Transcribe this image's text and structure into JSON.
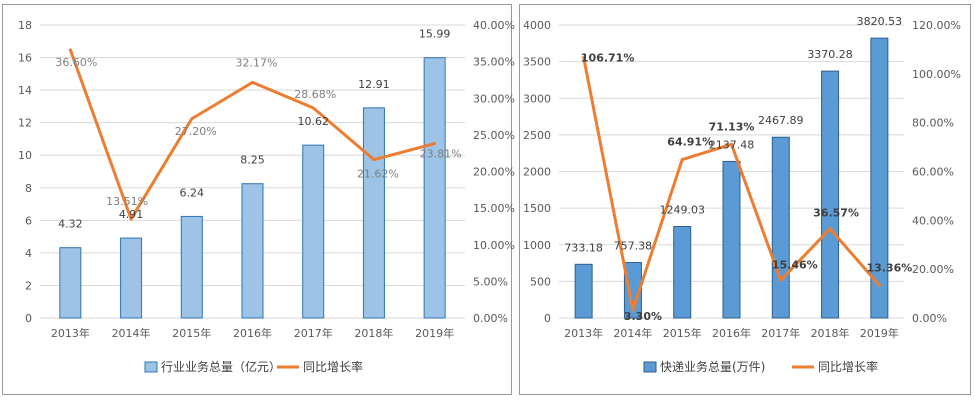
{
  "chart_data": [
    {
      "type": "bar",
      "categories": [
        "2013年",
        "2014年",
        "2015年",
        "2016年",
        "2017年",
        "2018年",
        "2019年"
      ],
      "series": [
        {
          "name": "行业业务总量（亿元）",
          "type": "bar",
          "axis": "left",
          "values": [
            4.32,
            4.91,
            6.24,
            8.25,
            10.62,
            12.91,
            15.99
          ],
          "labels": [
            "4.32",
            "4.91",
            "6.24",
            "8.25",
            "10.62",
            "12.91",
            "15.99"
          ]
        },
        {
          "name": "同比增长率",
          "type": "line",
          "axis": "right",
          "values": [
            36.6,
            13.51,
            27.2,
            32.17,
            28.68,
            21.62,
            23.81
          ],
          "labels": [
            "36.60%",
            "13.51%",
            "27.20%",
            "32.17%",
            "28.68%",
            "21.62%",
            "23.81%"
          ]
        }
      ],
      "ylim": [
        0,
        18
      ],
      "y_ticks": [
        "0",
        "2",
        "4",
        "6",
        "8",
        "10",
        "12",
        "14",
        "16",
        "18"
      ],
      "y2lim": [
        0,
        40
      ],
      "y2_ticks": [
        "0.00%",
        "5.00%",
        "10.00%",
        "15.00%",
        "20.00%",
        "25.00%",
        "30.00%",
        "35.00%",
        "40.00%"
      ],
      "grid": true,
      "legend": "bottom",
      "colors": {
        "bar": "#9dc3e6",
        "bar_border": "#2e75b6",
        "line": "#ed7d31"
      }
    },
    {
      "type": "bar",
      "categories": [
        "2013年",
        "2014年",
        "2015年",
        "2016年",
        "2017年",
        "2018年",
        "2019年"
      ],
      "series": [
        {
          "name": "快递业务总量(万件)",
          "type": "bar",
          "axis": "left",
          "values": [
            733.18,
            757.38,
            1249.03,
            2137.48,
            2467.89,
            3370.28,
            3820.53
          ],
          "labels": [
            "733.18",
            "757.38",
            "1249.03",
            "2137.48",
            "2467.89",
            "3370.28",
            "3820.53"
          ]
        },
        {
          "name": "同比增长率",
          "type": "line",
          "axis": "right",
          "values": [
            106.71,
            3.3,
            64.91,
            71.13,
            15.46,
            36.57,
            13.36
          ],
          "labels": [
            "106.71%",
            "3.30%",
            "64.91%",
            "71.13%",
            "15.46%",
            "36.57%",
            "13.36%"
          ]
        }
      ],
      "ylim": [
        0,
        4000
      ],
      "y_ticks": [
        "0",
        "500",
        "1000",
        "1500",
        "2000",
        "2500",
        "3000",
        "3500",
        "4000"
      ],
      "y2lim": [
        0,
        120
      ],
      "y2_ticks": [
        "0.00%",
        "20.00%",
        "40.00%",
        "60.00%",
        "80.00%",
        "100.00%",
        "120.00%"
      ],
      "grid": true,
      "legend": "bottom",
      "colors": {
        "bar": "#5b9bd5",
        "bar_border": "#2e5f8f",
        "line": "#ed7d31"
      }
    }
  ]
}
